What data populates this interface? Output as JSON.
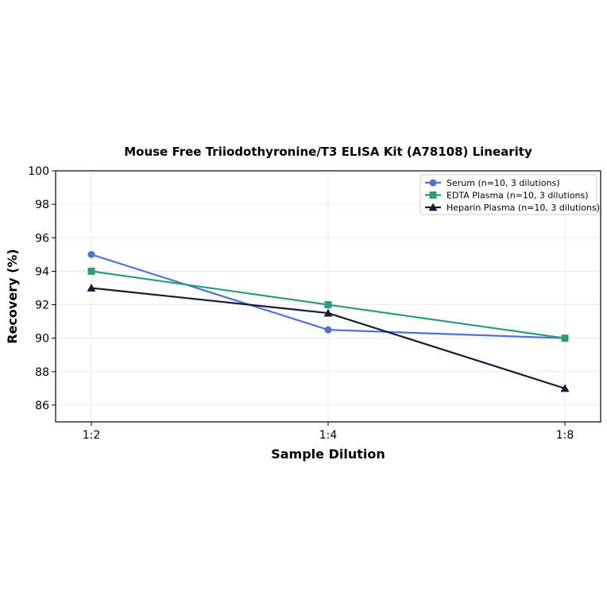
{
  "chart_data": {
    "type": "line",
    "title": "Mouse Free Triiodothyronine/T3 ELISA Kit (A78108) Linearity",
    "xlabel": "Sample Dilution",
    "ylabel": "Recovery (%)",
    "categories": [
      "1:2",
      "1:4",
      "1:8"
    ],
    "ylim": [
      85,
      100
    ],
    "yticks": [
      86,
      88,
      90,
      92,
      94,
      96,
      98,
      100
    ],
    "grid": true,
    "legend_position": "top-right",
    "series": [
      {
        "name": "Serum (n=10, 3 dilutions)",
        "values": [
          95,
          90.5,
          90
        ],
        "color": "#4f73cf",
        "marker": "circle"
      },
      {
        "name": "EDTA Plasma (n=10, 3 dilutions)",
        "values": [
          94,
          92,
          90
        ],
        "color": "#2a9d78",
        "marker": "square"
      },
      {
        "name": "Heparin Plasma (n=10, 3 dilutions)",
        "values": [
          93,
          91.5,
          87
        ],
        "color": "#141c3c",
        "marker": "triangle"
      }
    ]
  }
}
